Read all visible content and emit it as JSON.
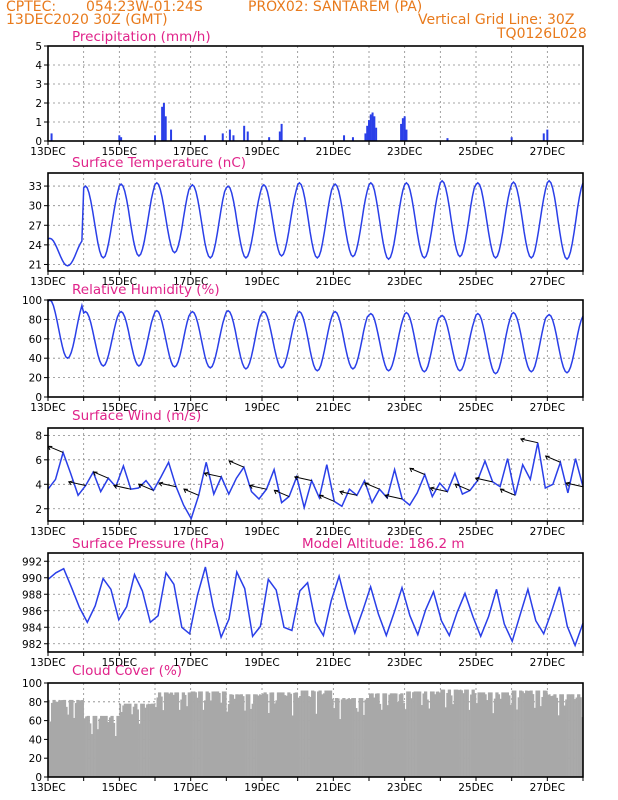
{
  "header": {
    "line1_left": "CPTEC:",
    "line1_mid": "054:23W-01:24S",
    "line1_right": "PROX02: SANTAREM (PA)",
    "line2_left": "13DEC2020 30Z (GMT)",
    "line2_right": "Vertical Grid Line: 30Z",
    "line3_right": "TQ0126L028"
  },
  "chart_data": [
    {
      "type": "bar",
      "title": "Precipitation (mm/h)",
      "ylim": [
        0,
        5
      ],
      "yticks": [
        0,
        1,
        2,
        3,
        4,
        5
      ],
      "xticks": [
        "13DEC",
        "15DEC",
        "17DEC",
        "19DEC",
        "21DEC",
        "23DEC",
        "25DEC",
        "27DEC"
      ],
      "x_start_label": "13DEC 2020",
      "color": "#2a3fe8",
      "values_by_day": [
        {
          "day": 0.1,
          "value": 0.4
        },
        {
          "day": 2.0,
          "value": 0.3
        },
        {
          "day": 2.05,
          "value": 0.2
        },
        {
          "day": 3.0,
          "value": 0.3
        },
        {
          "day": 3.2,
          "value": 1.8
        },
        {
          "day": 3.25,
          "value": 2.0
        },
        {
          "day": 3.3,
          "value": 1.3
        },
        {
          "day": 3.45,
          "value": 0.6
        },
        {
          "day": 4.4,
          "value": 0.3
        },
        {
          "day": 4.9,
          "value": 0.4
        },
        {
          "day": 5.1,
          "value": 0.6
        },
        {
          "day": 5.2,
          "value": 0.3
        },
        {
          "day": 5.5,
          "value": 0.8
        },
        {
          "day": 5.6,
          "value": 0.5
        },
        {
          "day": 6.2,
          "value": 0.2
        },
        {
          "day": 6.5,
          "value": 0.5
        },
        {
          "day": 6.55,
          "value": 0.9
        },
        {
          "day": 7.2,
          "value": 0.2
        },
        {
          "day": 8.3,
          "value": 0.3
        },
        {
          "day": 8.55,
          "value": 0.2
        },
        {
          "day": 8.9,
          "value": 0.4
        },
        {
          "day": 8.95,
          "value": 0.8
        },
        {
          "day": 9.0,
          "value": 1.1
        },
        {
          "day": 9.05,
          "value": 1.4
        },
        {
          "day": 9.1,
          "value": 1.5
        },
        {
          "day": 9.15,
          "value": 1.3
        },
        {
          "day": 9.2,
          "value": 0.7
        },
        {
          "day": 9.9,
          "value": 0.9
        },
        {
          "day": 9.95,
          "value": 1.2
        },
        {
          "day": 10.0,
          "value": 1.3
        },
        {
          "day": 10.05,
          "value": 0.6
        },
        {
          "day": 11.2,
          "value": 0.15
        },
        {
          "day": 13.0,
          "value": 0.2
        },
        {
          "day": 13.9,
          "value": 0.4
        },
        {
          "day": 14.0,
          "value": 0.6
        }
      ]
    },
    {
      "type": "line",
      "title": "Surface Temperature (nC)",
      "ylim": [
        20,
        35
      ],
      "yticks": [
        21,
        24,
        27,
        30,
        33
      ],
      "xticks": [
        "13DEC",
        "15DEC",
        "17DEC",
        "19DEC",
        "21DEC",
        "23DEC",
        "25DEC",
        "27DEC"
      ],
      "color": "#2a3fe8",
      "daily_min": [
        20.8,
        22.0,
        22.3,
        22.8,
        22.0,
        22.0,
        22.3,
        22.0,
        22.2,
        21.8,
        22.0,
        22.2,
        22.0,
        22.0,
        21.8
      ],
      "daily_max": [
        25.0,
        33.0,
        33.3,
        33.5,
        33.2,
        33.0,
        33.2,
        33.5,
        33.3,
        33.5,
        33.5,
        33.8,
        33.5,
        33.6,
        33.8
      ]
    },
    {
      "type": "line",
      "title": "Relative Humidity (%)",
      "ylim": [
        0,
        100
      ],
      "yticks": [
        0,
        20,
        40,
        60,
        80,
        100
      ],
      "xticks": [
        "13DEC",
        "15DEC",
        "17DEC",
        "19DEC",
        "21DEC",
        "23DEC",
        "25DEC",
        "27DEC"
      ],
      "color": "#2a3fe8",
      "daily_min": [
        40,
        32,
        32,
        31,
        30,
        29,
        30,
        27,
        29,
        27,
        26,
        27,
        24,
        26,
        25
      ],
      "daily_max": [
        100,
        88,
        88,
        89,
        88,
        89,
        88,
        88,
        88,
        86,
        87,
        84,
        86,
        87,
        85
      ]
    },
    {
      "type": "line",
      "title": "Surface Wind (m/s)",
      "ylim": [
        1,
        8.6
      ],
      "yticks": [
        2,
        4,
        6,
        8
      ],
      "xticks": [
        "13DEC",
        "15DEC",
        "17DEC",
        "19DEC",
        "21DEC",
        "23DEC",
        "25DEC",
        "27DEC"
      ],
      "color": "#2a3fe8",
      "series_values": [
        3.6,
        4.4,
        6.6,
        4.9,
        3.1,
        3.9,
        5.0,
        3.4,
        4.5,
        3.8,
        5.5,
        3.6,
        3.7,
        4.3,
        3.5,
        4.6,
        5.8,
        3.8,
        2.3,
        1.2,
        3.1,
        5.8,
        3.2,
        4.6,
        3.2,
        4.5,
        5.4,
        3.4,
        2.8,
        3.6,
        5.2,
        2.5,
        3.0,
        4.6,
        2.1,
        4.3,
        2.9,
        5.6,
        2.6,
        2.2,
        3.6,
        3.1,
        4.3,
        2.5,
        3.6,
        2.9,
        5.2,
        2.8,
        2.3,
        3.3,
        4.8,
        3.0,
        4.1,
        3.4,
        4.9,
        3.2,
        3.5,
        4.3,
        5.9,
        4.2,
        3.8,
        6.1,
        3.1,
        5.6,
        4.4,
        7.4,
        3.7,
        4.0,
        5.8,
        3.3,
        6.1,
        3.8
      ],
      "arrows_note": "wind direction arrows along series"
    },
    {
      "type": "line",
      "title": "Surface Pressure (hPa)",
      "annotation": "Model Altitude: 186.2 m",
      "ylim": [
        981,
        993
      ],
      "yticks": [
        982,
        984,
        986,
        988,
        990,
        992
      ],
      "xticks": [
        "13DEC",
        "15DEC",
        "17DEC",
        "19DEC",
        "21DEC",
        "23DEC",
        "25DEC",
        "27DEC"
      ],
      "color": "#2a3fe8",
      "series_values": [
        989.8,
        990.6,
        991.1,
        988.8,
        986.4,
        984.6,
        986.6,
        989.9,
        988.6,
        984.9,
        986.5,
        990.4,
        988.4,
        984.6,
        985.4,
        990.6,
        989.2,
        984.0,
        983.2,
        987.9,
        991.3,
        986.5,
        982.8,
        985.0,
        990.7,
        988.7,
        982.9,
        984.1,
        989.8,
        988.5,
        984.0,
        983.6,
        988.4,
        989.4,
        984.6,
        983.0,
        987.2,
        990.2,
        986.4,
        983.3,
        986.0,
        988.9,
        985.6,
        983.0,
        985.8,
        988.8,
        985.4,
        983.1,
        986.1,
        988.3,
        984.8,
        983.0,
        985.8,
        988.1,
        985.3,
        982.9,
        985.3,
        988.6,
        984.4,
        982.3,
        985.5,
        988.6,
        984.8,
        983.2,
        985.9,
        988.9,
        984.1,
        981.8,
        984.5
      ],
      "note": "12-hourly samples from 13DEC"
    },
    {
      "type": "bar",
      "title": "Cloud Cover (%)",
      "ylim": [
        0,
        100
      ],
      "yticks": [
        0,
        20,
        40,
        60,
        80,
        100
      ],
      "xticks": [
        "13DEC",
        "15DEC",
        "17DEC",
        "19DEC",
        "21DEC",
        "23DEC",
        "25DEC",
        "27DEC"
      ],
      "color": "#a8a8a8",
      "daily_values": [
        82,
        65,
        78,
        90,
        91,
        88,
        90,
        92,
        84,
        89,
        91,
        93,
        90,
        92,
        88
      ]
    }
  ]
}
